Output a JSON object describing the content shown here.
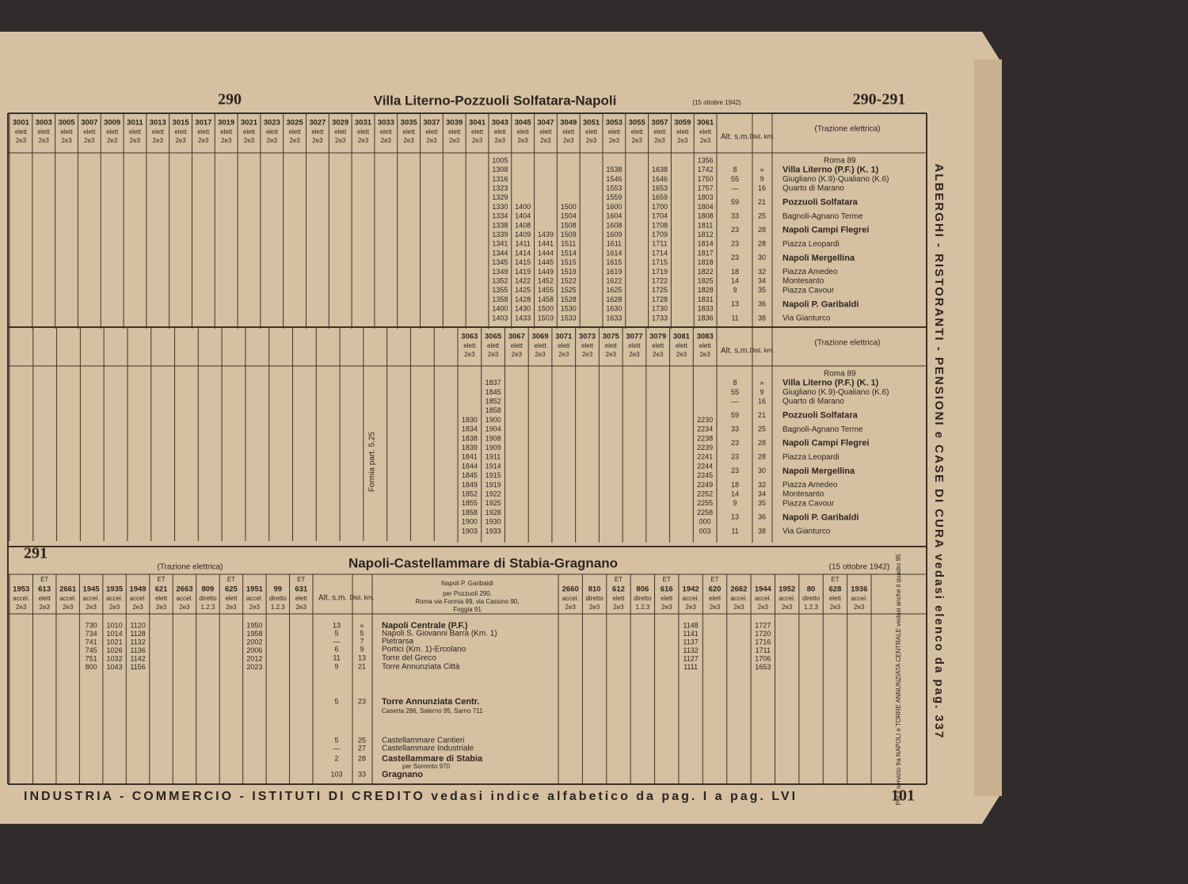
{
  "header": {
    "page_left": "290",
    "title": "Villa Literno-Pozzuoli Solfatara-Napoli",
    "date": "(15 ottobre 1942)",
    "page_right": "290-291"
  },
  "side_text": "ALBERGHI - RISTORANTI - PENSIONI e CASE DI CURA vedasi elenco da pag. 337",
  "footer": {
    "text": "INDUSTRIA - COMMERCIO - ISTITUTI DI CREDITO vedasi indice alfabetico da pag. I a pag. LVI",
    "page_number": "101"
  },
  "table_290": {
    "traction": "(Trazione elettrica)",
    "alt_label": "Alt. s.m.",
    "dist_label": "Dist. km.",
    "service": "elett",
    "classes": "2e3",
    "connection": "Roma 89",
    "stations": [
      {
        "name": "Villa Literno (P.F.) (K. 1)",
        "alt": "8",
        "km": "»"
      },
      {
        "name": "Giugliano (K.9)-Qualiano (K.6)",
        "alt": "55",
        "km": "9"
      },
      {
        "name": "Quarto di Marano",
        "alt": "—",
        "km": "16"
      },
      {
        "name": "Pozzuoli Solfatara",
        "alt": "59",
        "km": "21"
      },
      {
        "name": "Bagnoli-Agnano Terme",
        "alt": "33",
        "km": "25"
      },
      {
        "name": "Napoli Campi Flegrei",
        "alt": "23",
        "km": "28"
      },
      {
        "name": "Piazza Leopardi",
        "alt": "23",
        "km": "28"
      },
      {
        "name": "Napoli Mergellina",
        "alt": "23",
        "km": "30"
      },
      {
        "name": "Piazza Amedeo",
        "alt": "18",
        "km": "32"
      },
      {
        "name": "Montesanto",
        "alt": "14",
        "km": "34"
      },
      {
        "name": "Piazza Cavour",
        "alt": "9",
        "km": "35"
      },
      {
        "name": "Napoli P. Garibaldi",
        "alt": "13",
        "km": "36"
      },
      {
        "name": "Via Gianturco",
        "alt": "11",
        "km": "38"
      }
    ],
    "upper": {
      "trains": [
        "3001",
        "3003",
        "3005",
        "3007",
        "3009",
        "3011",
        "3013",
        "3015",
        "3017",
        "3019",
        "3021",
        "3023",
        "3025",
        "3027",
        "3029",
        "3031",
        "3033",
        "3035",
        "3037",
        "3039",
        "3041",
        "3043",
        "3045",
        "3047",
        "3049",
        "3051",
        "3053",
        "3055",
        "3057",
        "3059",
        "3061"
      ],
      "columns": [
        {
          "train": "3043",
          "times": [
            "1005",
            "1308",
            "1316",
            "1323",
            "1329",
            "1330",
            "1334",
            "1338",
            "1339",
            "1341",
            "1344",
            "1345",
            "1349",
            "1352",
            "1355",
            "1358",
            "1400",
            "1403"
          ]
        },
        {
          "train": "3045",
          "times": [
            null,
            null,
            null,
            null,
            null,
            "1400",
            "1404",
            "1408",
            "1409",
            "1411",
            "1414",
            "1415",
            "1419",
            "1422",
            "1425",
            "1428",
            "1430",
            "1433"
          ]
        },
        {
          "train": "3047",
          "times": [
            null,
            null,
            null,
            null,
            null,
            null,
            null,
            null,
            "1439",
            "1441",
            "1444",
            "1445",
            "1449",
            "1452",
            "1455",
            "1458",
            "1500",
            "1503"
          ]
        },
        {
          "train": "3049",
          "times": [
            null,
            null,
            null,
            null,
            null,
            "1500",
            "1504",
            "1508",
            "1509",
            "1511",
            "1514",
            "1515",
            "1519",
            "1522",
            "1525",
            "1528",
            "1530",
            "1533"
          ]
        },
        {
          "train": "3053",
          "times": [
            null,
            "1538",
            "1546",
            "1553",
            "1559",
            "1600",
            "1604",
            "1608",
            "1609",
            "1611",
            "1614",
            "1615",
            "1619",
            "1622",
            "1625",
            "1628",
            "1630",
            "1633"
          ]
        },
        {
          "train": "3057",
          "times": [
            null,
            "1638",
            "1646",
            "1653",
            "1659",
            "1700",
            "1704",
            "1708",
            "1709",
            "1711",
            "1714",
            "1715",
            "1719",
            "1722",
            "1725",
            "1728",
            "1730",
            "1733"
          ]
        },
        {
          "train": "3061",
          "times": [
            "1356",
            "1742",
            "1750",
            "1757",
            "1803",
            "1804",
            "1808",
            "1811",
            "1812",
            "1814",
            "1817",
            "1818",
            "1822",
            "1825",
            "1828",
            "1831",
            "1833",
            "1836"
          ]
        }
      ]
    },
    "lower": {
      "note": "Formia part. 5.25",
      "trains": [
        "3063",
        "3065",
        "3067",
        "3069",
        "3071",
        "3073",
        "3075",
        "3077",
        "3079",
        "3081",
        "3083"
      ],
      "columns": [
        {
          "train": "3063",
          "times": [
            null,
            null,
            null,
            null,
            null,
            "1830",
            "1834",
            "1838",
            "1839",
            "1841",
            "1844",
            "1845",
            "1849",
            "1852",
            "1855",
            "1858",
            "1900",
            "1903"
          ]
        },
        {
          "train": "3065",
          "times": [
            null,
            "1837",
            "1845",
            "1852",
            "1858",
            "1900",
            "1904",
            "1908",
            "1909",
            "1911",
            "1914",
            "1915",
            "1919",
            "1922",
            "1925",
            "1928",
            "1930",
            "1933"
          ]
        },
        {
          "train": "3083",
          "times": [
            null,
            null,
            null,
            null,
            null,
            "2230",
            "2234",
            "2238",
            "2239",
            "2241",
            "2244",
            "2245",
            "2249",
            "2252",
            "2255",
            "2258",
            "000",
            "003"
          ]
        }
      ]
    }
  },
  "table_291": {
    "number": "291",
    "traction": "(Trazione elettrica)",
    "title": "Napoli-Castellammare di Stabia-Gragnano",
    "date": "(15 ottobre 1942)",
    "origin": "Napoli P. Garibaldi",
    "origin_notes": [
      "per Pozzuoli 290.",
      "Roma via Formia 89, via Cassino 90,",
      "Foggia 91"
    ],
    "alt_label": "Alt. s.m.",
    "dist_label": "Dist. km.",
    "stations": [
      {
        "name": "Napoli Centrale (P.F.)",
        "alt": "13",
        "km": "»"
      },
      {
        "name": "Napoli S. Giovanni Barra (Km. 1)",
        "alt": "5",
        "km": "5"
      },
      {
        "name": "Pietrarsa",
        "alt": "—",
        "km": "7"
      },
      {
        "name": "Portici (Km. 1)-Ercolano",
        "alt": "6",
        "km": "9"
      },
      {
        "name": "Torre del Greco",
        "alt": "11",
        "km": "13"
      },
      {
        "name": "Torre Annunziata Città",
        "alt": "9",
        "km": "21"
      },
      {
        "name": "Torre Annunziata Centr.",
        "alt": "5",
        "km": "23"
      },
      {
        "name": "Castellammare Cantieri",
        "alt": "5",
        "km": "25"
      },
      {
        "name": "Castellammare Industriale",
        "alt": "—",
        "km": "27"
      },
      {
        "name": "Castellammare di Stabia",
        "alt": "2",
        "km": "28"
      },
      {
        "name": "Gragnano",
        "alt": "103",
        "km": "33"
      }
    ],
    "connection_note": "Caserta 286, Salerno 95, Sarno 711",
    "sorrento_note": "per Sorrento 970",
    "left_trains": [
      {
        "number": "1953",
        "service": "accel.",
        "classes": "2e3"
      },
      {
        "prefix": "ET",
        "number": "613",
        "service": "elett",
        "classes": "2e3"
      },
      {
        "number": "2661",
        "service": "accel.",
        "classes": "2e3"
      },
      {
        "number": "1945",
        "service": "accel.",
        "classes": "2e3"
      },
      {
        "number": "1935",
        "service": "accel.",
        "classes": "2e3"
      },
      {
        "number": "1949",
        "service": "accel.",
        "classes": "2e3"
      },
      {
        "prefix": "ET",
        "number": "621",
        "service": "elett",
        "classes": "2e3"
      },
      {
        "number": "2663",
        "service": "accel.",
        "classes": "2e3"
      },
      {
        "number": "809",
        "service": "diretto",
        "classes": "1.2.3"
      },
      {
        "prefix": "ET",
        "number": "625",
        "service": "elett",
        "classes": "2e3"
      },
      {
        "number": "1951",
        "service": "accel.",
        "classes": "2e3"
      },
      {
        "number": "99",
        "service": "diretto",
        "classes": "1.2.3"
      },
      {
        "prefix": "ET",
        "number": "631",
        "service": "elett",
        "classes": "2e3"
      }
    ],
    "right_trains": [
      {
        "number": "2660",
        "service": "accel.",
        "classes": "2e3"
      },
      {
        "number": "810",
        "service": "diretto",
        "classes": "2e3"
      },
      {
        "prefix": "ET",
        "number": "612",
        "service": "elett",
        "classes": "2e3"
      },
      {
        "number": "806",
        "service": "diretto",
        "classes": "1.2.3"
      },
      {
        "prefix": "ET",
        "number": "616",
        "service": "elett",
        "classes": "2e3"
      },
      {
        "number": "1942",
        "service": "accel.",
        "classes": "2e3"
      },
      {
        "prefix": "ET",
        "number": "620",
        "service": "elett",
        "classes": "2e3"
      },
      {
        "number": "2662",
        "service": "accel.",
        "classes": "2e3"
      },
      {
        "number": "1944",
        "service": "accel.",
        "classes": "2e3"
      },
      {
        "number": "1952",
        "service": "accel.",
        "classes": "2e3"
      },
      {
        "number": "80",
        "service": "diretto",
        "classes": "1.2.3"
      },
      {
        "prefix": "ET",
        "number": "628",
        "service": "elett",
        "classes": "2e3"
      },
      {
        "number": "1936",
        "service": "accel.",
        "classes": "2e3"
      }
    ],
    "left_columns": [
      {
        "train": "1945",
        "times": [
          "730",
          "734",
          "741",
          "745",
          "751",
          "800"
        ]
      },
      {
        "train": "1935",
        "times": [
          "1010",
          "1014",
          "1021",
          "1026",
          "1032",
          "1043"
        ]
      },
      {
        "train": "1949",
        "times": [
          "1120",
          "1128",
          "1132",
          "1136",
          "1142",
          "1156"
        ]
      },
      {
        "train": "1951",
        "times": [
          "1950",
          "1958",
          "2002",
          "2006",
          "2012",
          "2023"
        ]
      }
    ],
    "right_columns": [
      {
        "train": "1942",
        "times": [
          "1148",
          "1141",
          "1137",
          "1132",
          "1127",
          "1111"
        ]
      },
      {
        "train": "1944",
        "times": [
          "1727",
          "1720",
          "1716",
          "1711",
          "1706",
          "1653"
        ]
      }
    ],
    "side_note": "Per il servizio fra NAPOLI e TORRE ANNUNZIATA CENTRALE vedasi anche il quadro 95"
  }
}
